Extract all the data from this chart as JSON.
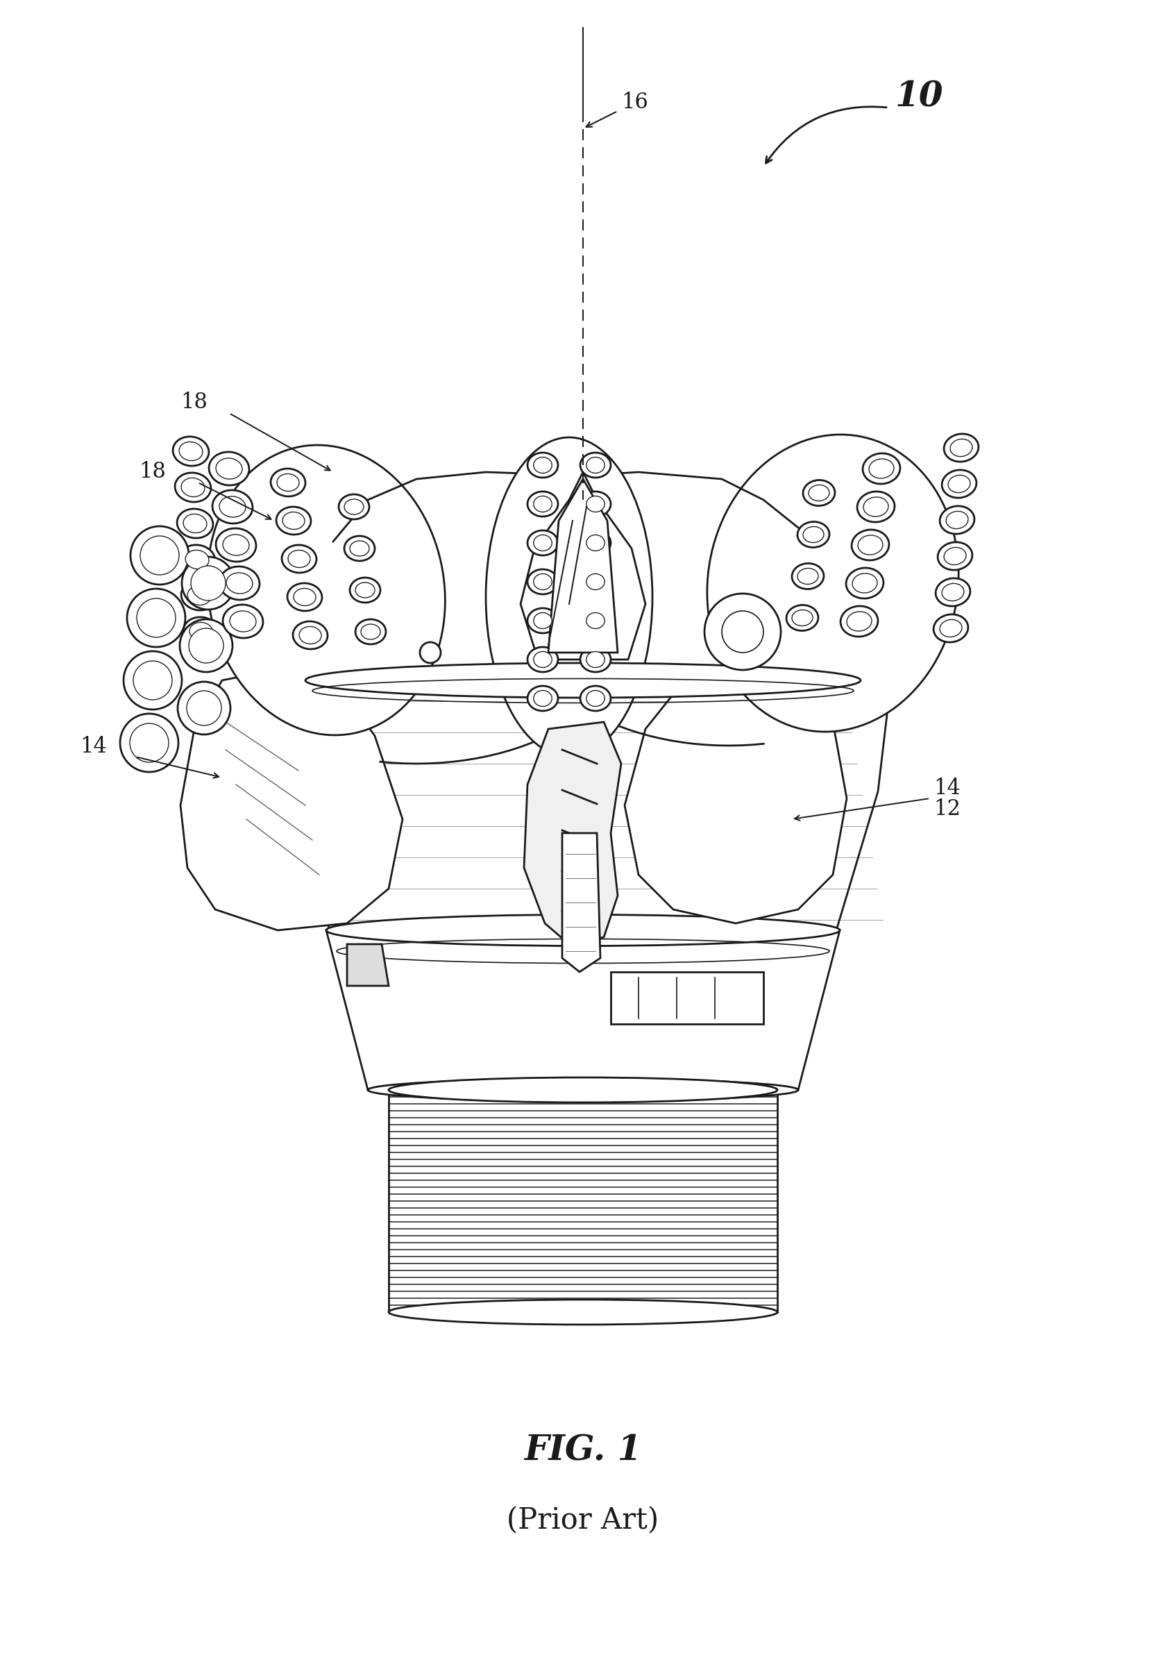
{
  "fig_label": "FIG. 1",
  "fig_sublabel": "(Prior Art)",
  "label_10": "10",
  "label_12": "12",
  "label_14": "14",
  "label_16": "16",
  "label_18": "18",
  "background_color": "#ffffff",
  "line_color": "#1a1a1a",
  "fig_label_fontsize": 36,
  "fig_sublabel_fontsize": 30,
  "annotation_fontsize": 22,
  "lw_main": 2.0,
  "lw_thin": 1.2,
  "lw_thick": 2.8
}
